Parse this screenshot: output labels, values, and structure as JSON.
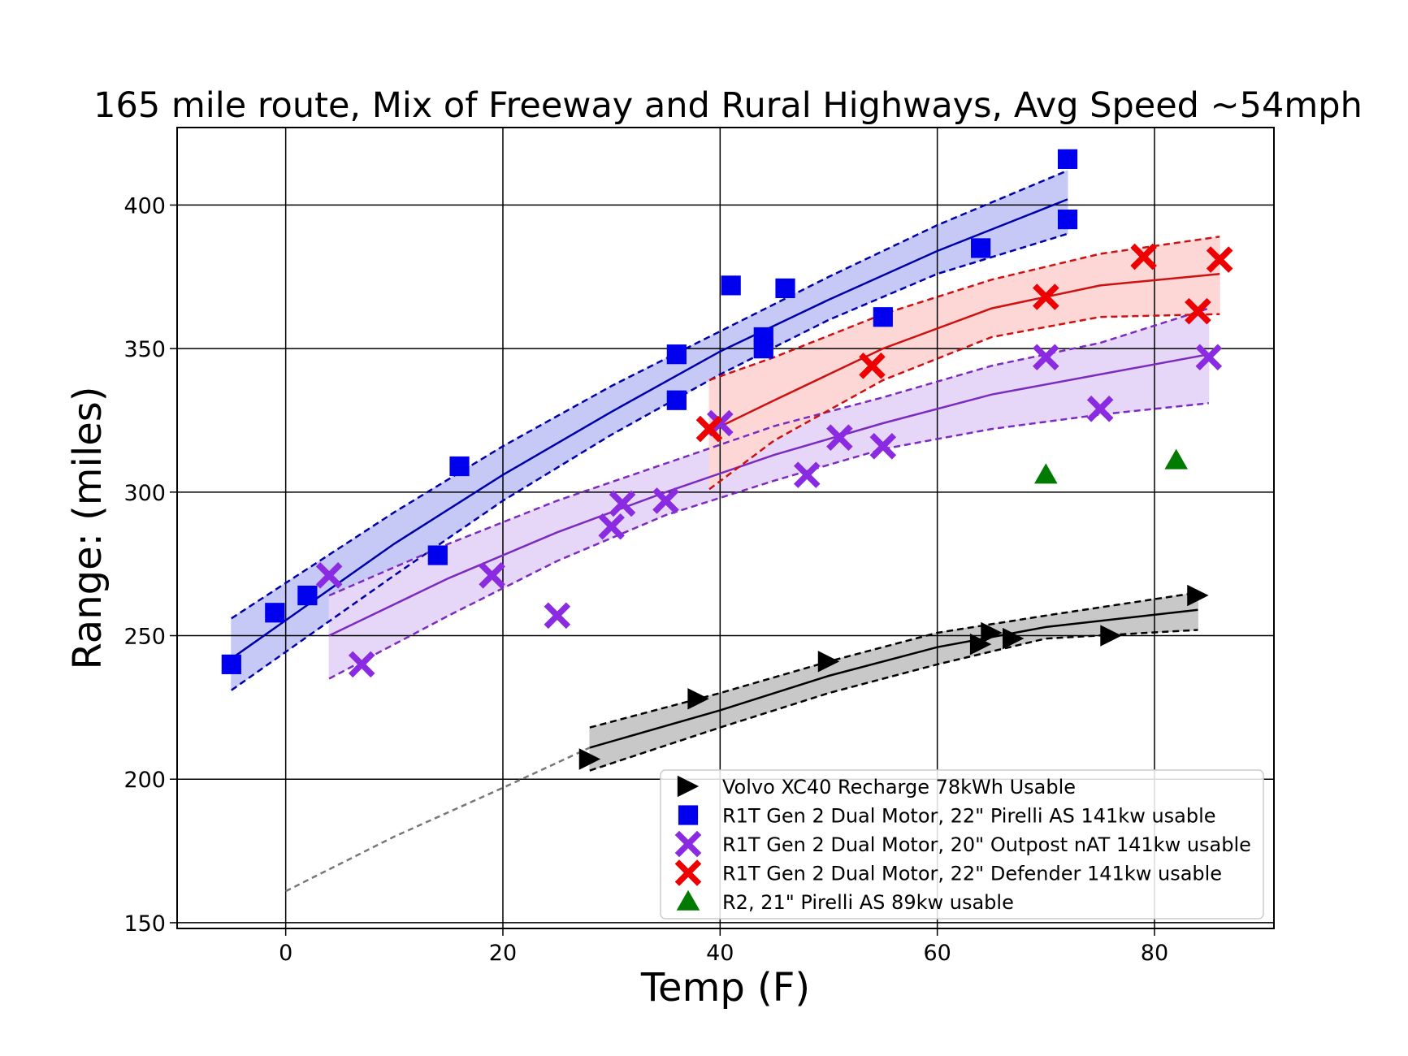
{
  "chart_data": {
    "type": "scatter",
    "title": "165 mile route, Mix of Freeway and Rural Highways, Avg Speed ~54mph",
    "xlabel": "Temp (F)",
    "ylabel": "Range: (miles)",
    "xlim": [
      -10,
      91
    ],
    "ylim": [
      148,
      427
    ],
    "xticks": [
      0,
      20,
      40,
      60,
      80
    ],
    "yticks": [
      150,
      200,
      250,
      300,
      350,
      400
    ],
    "grid": true,
    "legend_position": "lower-right",
    "series": [
      {
        "name": "Volvo XC40 Recharge 78kWh Usable",
        "marker": "triangle-right",
        "color": "#000000",
        "band_color": "#c8c8c8",
        "line_color": "#000000",
        "points": [
          [
            28,
            207
          ],
          [
            38,
            228
          ],
          [
            50,
            241
          ],
          [
            64,
            247
          ],
          [
            65,
            251
          ],
          [
            67,
            249
          ],
          [
            76,
            250
          ],
          [
            84,
            264
          ]
        ],
        "fit": {
          "x": [
            28,
            40,
            50,
            60,
            70,
            84
          ],
          "y": [
            211,
            224,
            236,
            246,
            253,
            259
          ]
        },
        "upper": {
          "x": [
            28,
            40,
            50,
            60,
            70,
            84
          ],
          "y": [
            218,
            230,
            241,
            251,
            257,
            265
          ]
        },
        "lower": {
          "x": [
            28,
            40,
            50,
            60,
            70,
            84
          ],
          "y": [
            203,
            218,
            230,
            240,
            249,
            252
          ]
        },
        "extrapolation": {
          "x": [
            0,
            10,
            20,
            28
          ],
          "y": [
            161,
            180,
            197,
            211
          ]
        }
      },
      {
        "name": "R1T Gen 2 Dual Motor, 22\" Pirelli AS 141kw usable",
        "marker": "square",
        "color": "#0000ee",
        "band_color": "#c6c8f6",
        "line_color": "#0000aa",
        "points": [
          [
            -5,
            240
          ],
          [
            -1,
            258
          ],
          [
            2,
            264
          ],
          [
            14,
            278
          ],
          [
            16,
            309
          ],
          [
            36,
            348
          ],
          [
            36,
            332
          ],
          [
            41,
            372
          ],
          [
            44,
            354
          ],
          [
            44,
            350
          ],
          [
            46,
            371
          ],
          [
            55,
            361
          ],
          [
            64,
            385
          ],
          [
            72,
            416
          ],
          [
            72,
            395
          ]
        ],
        "fit": {
          "x": [
            -5,
            10,
            20,
            30,
            40,
            50,
            60,
            72
          ],
          "y": [
            242,
            282,
            306,
            328,
            349,
            367,
            384,
            402
          ]
        },
        "upper": {
          "x": [
            -5,
            10,
            20,
            30,
            40,
            50,
            60,
            72
          ],
          "y": [
            256,
            293,
            316,
            337,
            356,
            375,
            393,
            412
          ]
        },
        "lower": {
          "x": [
            -5,
            10,
            20,
            30,
            40,
            50,
            60,
            72
          ],
          "y": [
            231,
            271,
            297,
            320,
            341,
            360,
            376,
            390
          ]
        }
      },
      {
        "name": "R1T Gen 2 Dual Motor, 20\" Outpost nAT 141kw usable",
        "marker": "x",
        "color": "#8a2be2",
        "band_color": "#e6d6f8",
        "line_color": "#7b2cbf",
        "points": [
          [
            4,
            271
          ],
          [
            7,
            240
          ],
          [
            19,
            271
          ],
          [
            25,
            257
          ],
          [
            30,
            288
          ],
          [
            31,
            296
          ],
          [
            35,
            297
          ],
          [
            40,
            324
          ],
          [
            48,
            306
          ],
          [
            51,
            319
          ],
          [
            55,
            316
          ],
          [
            70,
            347
          ],
          [
            75,
            329
          ],
          [
            85,
            347
          ]
        ],
        "fit": {
          "x": [
            4,
            15,
            25,
            35,
            45,
            55,
            65,
            75,
            85
          ],
          "y": [
            250,
            270,
            286,
            300,
            313,
            324,
            334,
            341,
            348
          ]
        },
        "upper": {
          "x": [
            4,
            15,
            25,
            35,
            45,
            55,
            65,
            75,
            85
          ],
          "y": [
            264,
            282,
            297,
            310,
            323,
            333,
            344,
            352,
            364
          ]
        },
        "lower": {
          "x": [
            4,
            15,
            25,
            35,
            45,
            55,
            65,
            75,
            85
          ],
          "y": [
            235,
            257,
            276,
            292,
            304,
            315,
            322,
            327,
            331
          ]
        }
      },
      {
        "name": "R1T Gen 2 Dual Motor, 22\" Defender 141kw usable",
        "marker": "x",
        "color": "#ee0000",
        "band_color": "#fdd6d6",
        "line_color": "#cc1111",
        "points": [
          [
            39,
            322
          ],
          [
            54,
            344
          ],
          [
            70,
            368
          ],
          [
            79,
            382
          ],
          [
            84,
            363
          ],
          [
            86,
            381
          ]
        ],
        "fit": {
          "x": [
            39,
            45,
            55,
            65,
            75,
            86
          ],
          "y": [
            321,
            332,
            350,
            364,
            372,
            376
          ]
        },
        "upper": {
          "x": [
            39,
            45,
            55,
            65,
            75,
            86
          ],
          "y": [
            339,
            347,
            362,
            374,
            383,
            389
          ]
        },
        "lower": {
          "x": [
            39,
            45,
            55,
            65,
            75,
            86
          ],
          "y": [
            301,
            318,
            339,
            354,
            361,
            362
          ]
        }
      },
      {
        "name": "R2, 21\" Pirelli AS 89kw usable",
        "marker": "triangle-up",
        "color": "#007a00",
        "points": [
          [
            70,
            306
          ],
          [
            82,
            311
          ]
        ]
      }
    ]
  }
}
